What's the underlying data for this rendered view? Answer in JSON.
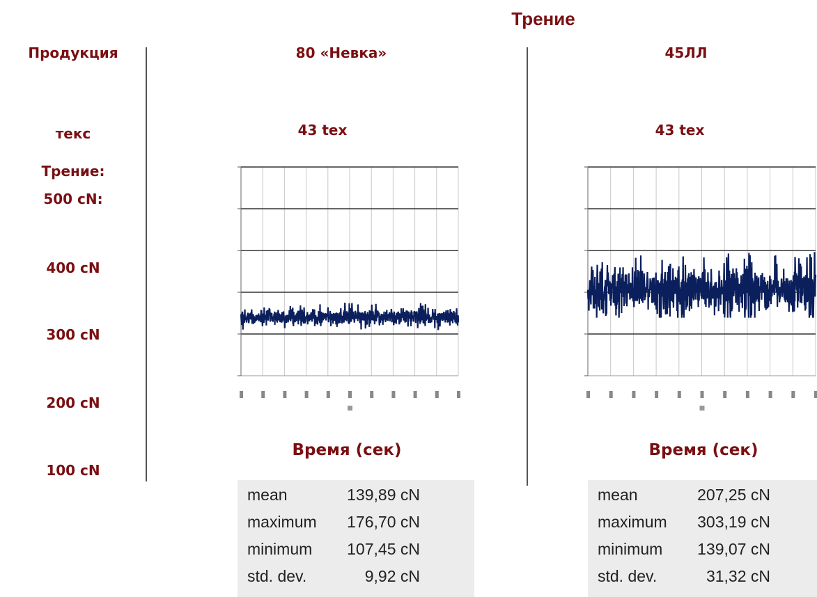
{
  "title": "Трение",
  "left_column": {
    "product": "Продукция",
    "tex": "текс",
    "friction": "Трение:",
    "levels": [
      "500 cN:",
      "400 cN",
      "300 cN",
      "200 cN",
      "100 cN"
    ]
  },
  "panels": [
    {
      "header": "80 «Невка»",
      "tex": "43 tex",
      "xlabel": "Время (сек)",
      "stats": [
        {
          "key": "mean",
          "value": "139,89 cN"
        },
        {
          "key": "maximum",
          "value": "176,70 cN"
        },
        {
          "key": "minimum",
          "value": "107,45 cN"
        },
        {
          "key": "std. dev.",
          "value": "9,92 cN"
        }
      ]
    },
    {
      "header": "45ЛЛ",
      "tex": "43 tex",
      "xlabel": "Время (сек)",
      "stats": [
        {
          "key": "mean",
          "value": "207,25 cN"
        },
        {
          "key": "maximum",
          "value": "303,19 cN"
        },
        {
          "key": "minimum",
          "value": "139,07 cN"
        },
        {
          "key": "std. dev.",
          "value": "31,32 cN"
        }
      ]
    }
  ],
  "chart_data": [
    {
      "type": "line",
      "series": [
        {
          "mean": 139.89,
          "max": 176.7,
          "min": 107.45,
          "std": 9.92,
          "color": "#0b1f5c"
        }
      ],
      "ylim": [
        0,
        500
      ],
      "yticks": [
        0,
        100,
        200,
        300,
        400,
        500
      ],
      "xlim": [
        0,
        10
      ],
      "grid": true
    },
    {
      "type": "line",
      "series": [
        {
          "mean": 207.25,
          "max": 303.19,
          "min": 139.07,
          "std": 31.32,
          "color": "#0b1f5c"
        }
      ],
      "ylim": [
        0,
        500
      ],
      "yticks": [
        0,
        100,
        200,
        300,
        400,
        500
      ],
      "xlim": [
        0,
        10
      ],
      "grid": true
    }
  ]
}
